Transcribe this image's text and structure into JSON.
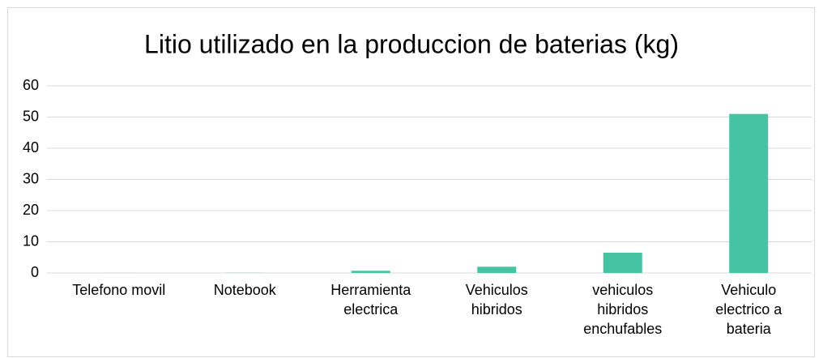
{
  "chart_data": {
    "type": "bar",
    "title": "Litio utilizado en la produccion de baterias (kg)",
    "categories": [
      "Telefono movil",
      "Notebook",
      "Herramienta electrica",
      "Vehiculos hibridos",
      "vehiculos hibridos enchufables",
      "Vehiculo electrico a bateria"
    ],
    "values": [
      0.01,
      0.04,
      0.7,
      2,
      6.5,
      51
    ],
    "color": "#45c3a2",
    "ylim": [
      0,
      60
    ],
    "yticks": [
      0,
      10,
      20,
      30,
      40,
      50,
      60
    ],
    "grid": true
  }
}
